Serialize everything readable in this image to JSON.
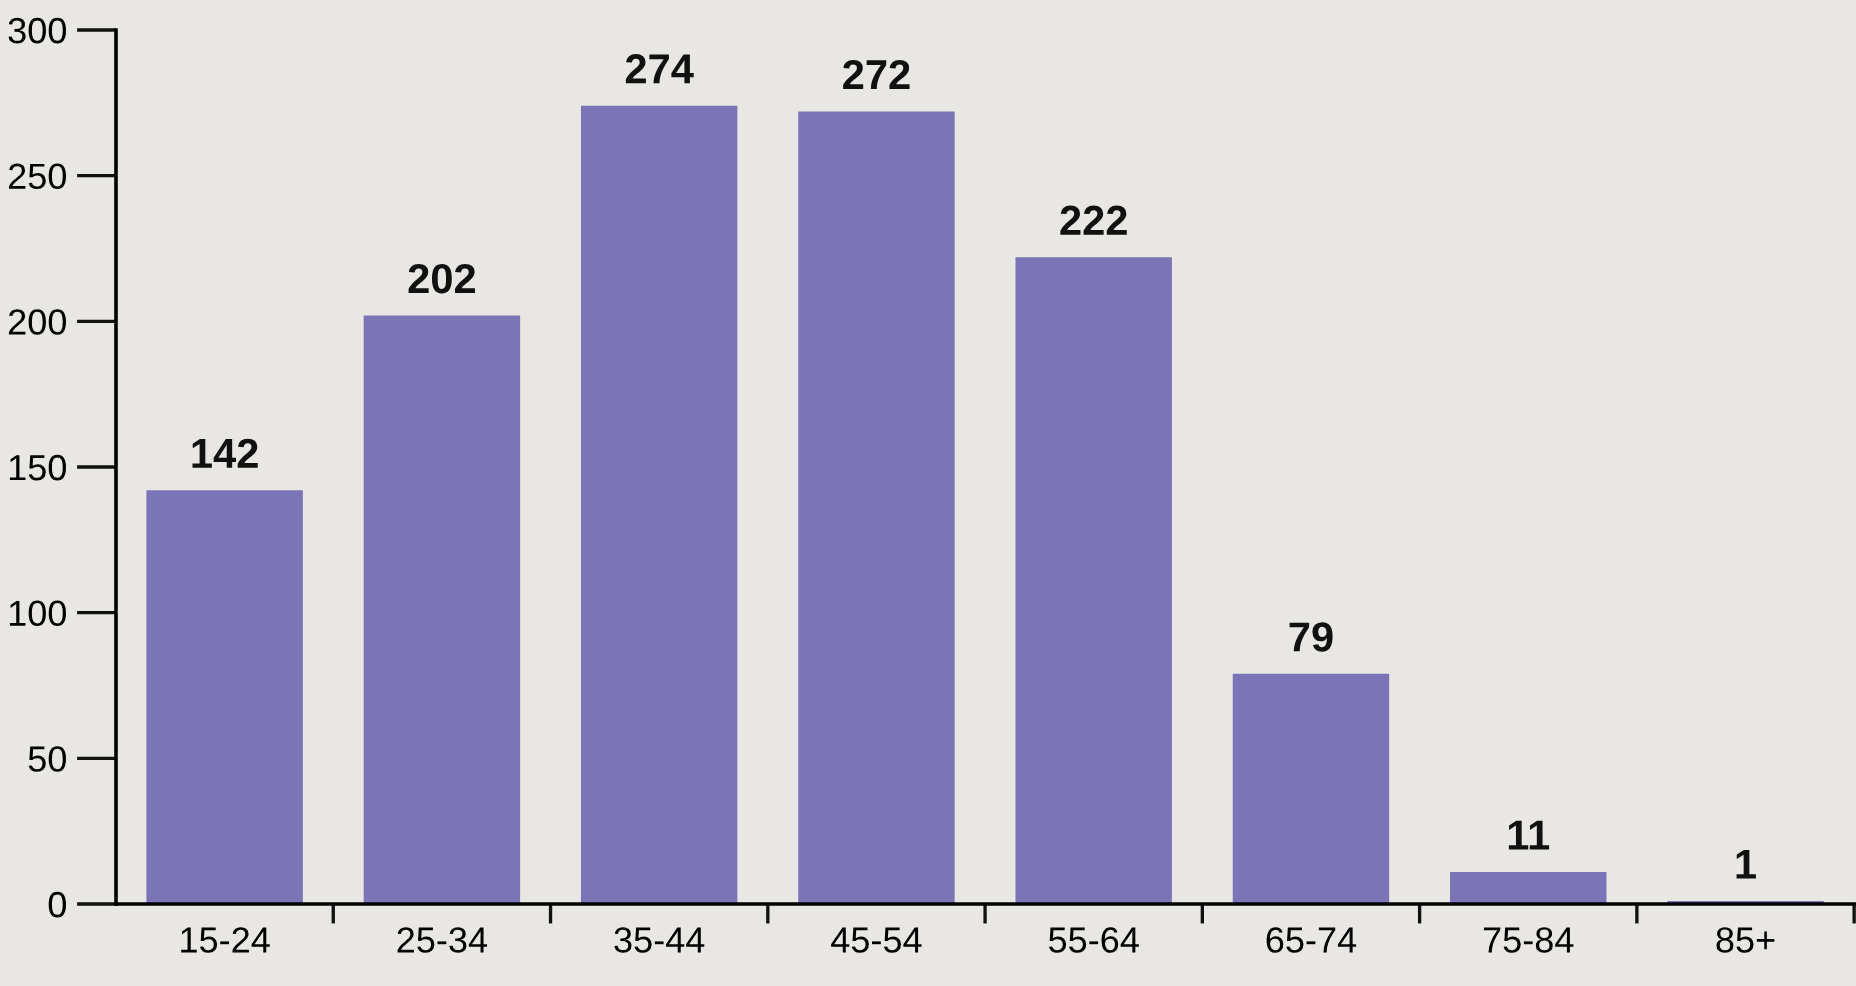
{
  "chart_data": {
    "type": "bar",
    "categories": [
      "15-24",
      "25-34",
      "35-44",
      "45-54",
      "55-64",
      "65-74",
      "75-84",
      "85+"
    ],
    "values": [
      142,
      202,
      274,
      272,
      222,
      79,
      11,
      1
    ],
    "color": "#7b74b6",
    "ylim": [
      0,
      300
    ],
    "yticks": [
      0,
      50,
      100,
      150,
      200,
      250,
      300
    ],
    "data_labels": true,
    "grid": false,
    "legend": false
  }
}
